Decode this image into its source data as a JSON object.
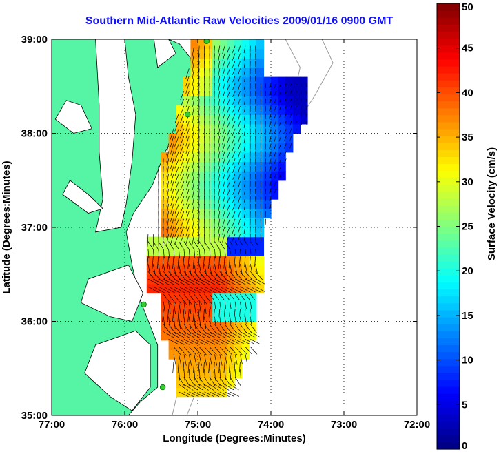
{
  "chart_data": {
    "type": "heatmap",
    "title": "Southern Mid-Atlantic Raw Velocities 2009/01/16 0900 GMT",
    "xlabel": "Longitude (Degrees:Minutes)",
    "ylabel": "Latitude (Degrees:Minutes)",
    "xlim": [
      -77,
      -72
    ],
    "ylim": [
      35,
      39
    ],
    "x_ticks": [
      -77,
      -76,
      -75,
      -74,
      -73,
      -72
    ],
    "x_tick_labels": [
      "77:00",
      "76:00",
      "75:00",
      "74:00",
      "73:00",
      "72:00"
    ],
    "y_ticks": [
      35,
      36,
      37,
      38,
      39
    ],
    "y_tick_labels": [
      "35:00",
      "36:00",
      "37:00",
      "38:00",
      "39:00"
    ],
    "grid": true,
    "colorbar": {
      "label": "Surface Velocity (cm/s)",
      "min": 0,
      "max": 50,
      "ticks": [
        0,
        5,
        10,
        15,
        20,
        25,
        30,
        35,
        40,
        45,
        50
      ],
      "tick_labels": [
        "0",
        "5",
        "10",
        "15",
        "20",
        "25",
        "30",
        "35",
        "40",
        "45",
        "50"
      ]
    },
    "land_color": "#55f5a5",
    "sites": [
      {
        "lon": -74.88,
        "lat": 38.98
      },
      {
        "lon": -75.14,
        "lat": 38.2
      },
      {
        "lon": -75.74,
        "lat": 36.18
      },
      {
        "lon": -75.48,
        "lat": 35.3
      }
    ]
  }
}
